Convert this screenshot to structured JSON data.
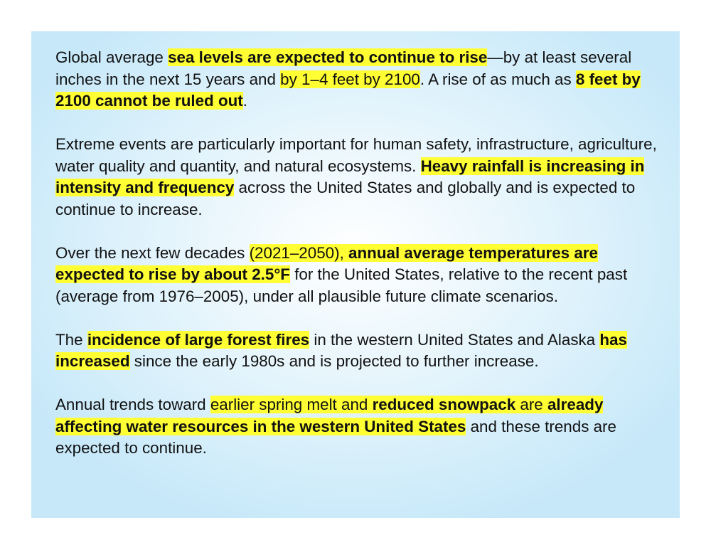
{
  "paragraphs": [
    {
      "segments": [
        {
          "text": "Global average ",
          "highlight": false,
          "bold": false
        },
        {
          "text": "sea levels are expected to continue to rise",
          "highlight": true,
          "bold": true
        },
        {
          "text": "—by at least several inches in the next 15 years and ",
          "highlight": false,
          "bold": false
        },
        {
          "text": "by 1–4 feet by 2100",
          "highlight": true,
          "bold": false
        },
        {
          "text": ". A rise of as much as ",
          "highlight": false,
          "bold": false
        },
        {
          "text": "8 feet by 2100 cannot be ruled out",
          "highlight": true,
          "bold": true
        },
        {
          "text": ".",
          "highlight": false,
          "bold": false
        }
      ]
    },
    {
      "segments": [
        {
          "text": "Extreme events are particularly important for human safety, infrastructure, agriculture, water quality and quantity, and natural ecosystems. ",
          "highlight": false,
          "bold": false
        },
        {
          "text": "Heavy rainfall is increasing in intensity and frequency",
          "highlight": true,
          "bold": true
        },
        {
          "text": " across the United States and globally and is expected to continue to increase.",
          "highlight": false,
          "bold": false
        }
      ]
    },
    {
      "segments": [
        {
          "text": "Over the next few decades ",
          "highlight": false,
          "bold": false
        },
        {
          "text": "(2021–2050), ",
          "highlight": true,
          "bold": false
        },
        {
          "text": "annual average temperatures are expected to rise by about 2.5°F",
          "highlight": true,
          "bold": true
        },
        {
          "text": " for the United States, relative to the recent past (average from 1976–2005), under all plausible future climate scenarios.",
          "highlight": false,
          "bold": false
        }
      ]
    },
    {
      "segments": [
        {
          "text": "The ",
          "highlight": false,
          "bold": false
        },
        {
          "text": "incidence of large forest fires",
          "highlight": true,
          "bold": true
        },
        {
          "text": " in the western United States and Alaska ",
          "highlight": false,
          "bold": false
        },
        {
          "text": "has increased",
          "highlight": true,
          "bold": true
        },
        {
          "text": " since the early 1980s and is projected to further increase.",
          "highlight": false,
          "bold": false
        }
      ]
    },
    {
      "segments": [
        {
          "text": "Annual trends toward ",
          "highlight": false,
          "bold": false
        },
        {
          "text": "earlier spring melt and ",
          "highlight": true,
          "bold": false
        },
        {
          "text": "reduced snowpack",
          "highlight": true,
          "bold": true
        },
        {
          "text": " are ",
          "highlight": true,
          "bold": false
        },
        {
          "text": "already affecting water resources in the western United States",
          "highlight": true,
          "bold": true
        },
        {
          "text": " and these trends are expected to continue.",
          "highlight": false,
          "bold": false
        }
      ]
    }
  ]
}
